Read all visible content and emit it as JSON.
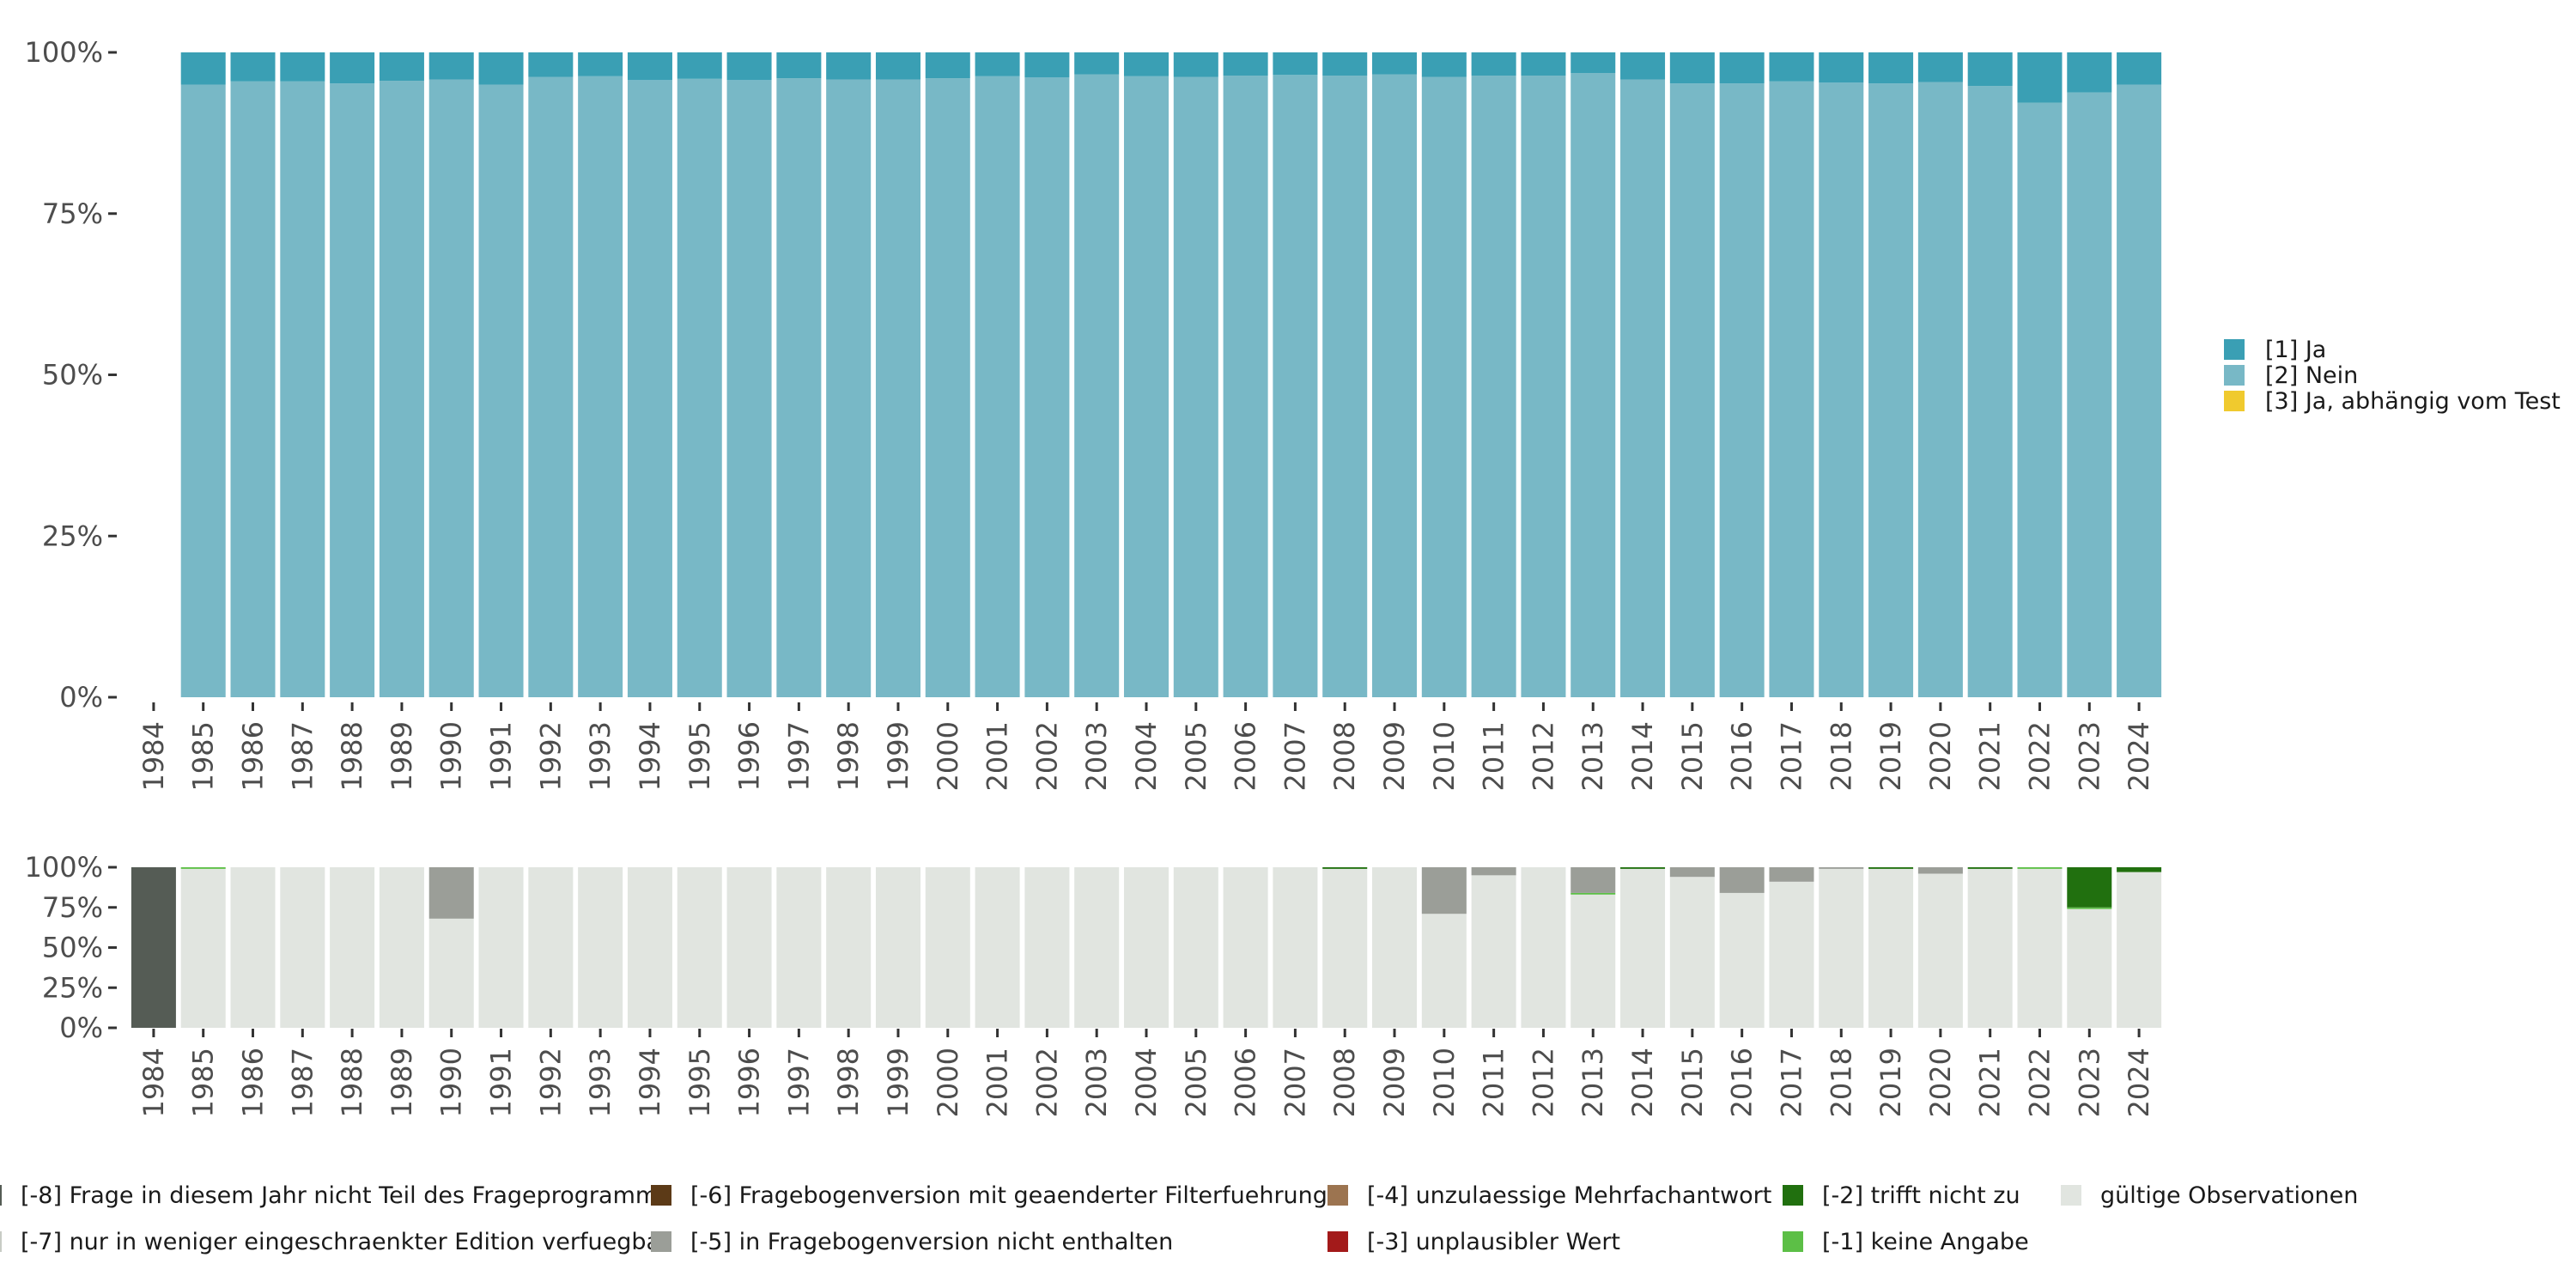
{
  "chart_data": [
    {
      "type": "bar",
      "stacked": true,
      "normalized": true,
      "categories": [
        "1984",
        "1985",
        "1986",
        "1987",
        "1988",
        "1989",
        "1990",
        "1991",
        "1992",
        "1993",
        "1994",
        "1995",
        "1996",
        "1997",
        "1998",
        "1999",
        "2000",
        "2001",
        "2002",
        "2003",
        "2004",
        "2005",
        "2006",
        "2007",
        "2008",
        "2009",
        "2010",
        "2011",
        "2012",
        "2013",
        "2014",
        "2015",
        "2016",
        "2017",
        "2018",
        "2019",
        "2020",
        "2021",
        "2022",
        "2023",
        "2024"
      ],
      "y_ticks": [
        "0%",
        "25%",
        "50%",
        "75%",
        "100%"
      ],
      "ylim": [
        0,
        100
      ],
      "legend_position": "right",
      "series": [
        {
          "name": "[2] Nein",
          "color": "#78b8c6",
          "values": [
            0,
            95,
            95.5,
            95.5,
            95.2,
            95.6,
            95.8,
            95,
            96.2,
            96.3,
            95.7,
            95.9,
            95.7,
            96,
            95.8,
            95.8,
            96,
            96.3,
            96.1,
            96.6,
            96.3,
            96.2,
            96.4,
            96.5,
            96.4,
            96.6,
            96.2,
            96.4,
            96.4,
            96.8,
            95.8,
            95.2,
            95.2,
            95.5,
            95.3,
            95.2,
            95.4,
            94.8,
            92.2,
            93.8,
            95
          ]
        },
        {
          "name": "[1] Ja",
          "color": "#3a9fb4",
          "values": [
            0,
            5,
            4.5,
            4.5,
            4.8,
            4.4,
            4.2,
            5,
            3.8,
            3.7,
            4.3,
            4.1,
            4.3,
            4,
            4.2,
            4.2,
            4,
            3.7,
            3.9,
            3.4,
            3.7,
            3.8,
            3.6,
            3.5,
            3.6,
            3.4,
            3.8,
            3.6,
            3.6,
            3.2,
            4.2,
            4.8,
            4.8,
            4.5,
            4.7,
            4.8,
            4.6,
            5.2,
            7.8,
            6.2,
            5
          ]
        },
        {
          "name": "[3] Ja, abhängig vom Test",
          "color": "#f0ca2e",
          "values": [
            0,
            0,
            0,
            0,
            0,
            0,
            0,
            0,
            0,
            0,
            0,
            0,
            0,
            0,
            0,
            0,
            0,
            0,
            0,
            0,
            0,
            0,
            0,
            0,
            0,
            0,
            0,
            0,
            0,
            0,
            0,
            0,
            0,
            0,
            0,
            0,
            0,
            0,
            0,
            0,
            0
          ]
        }
      ]
    },
    {
      "type": "bar",
      "stacked": true,
      "normalized": true,
      "categories": [
        "1984",
        "1985",
        "1986",
        "1987",
        "1988",
        "1989",
        "1990",
        "1991",
        "1992",
        "1993",
        "1994",
        "1995",
        "1996",
        "1997",
        "1998",
        "1999",
        "2000",
        "2001",
        "2002",
        "2003",
        "2004",
        "2005",
        "2006",
        "2007",
        "2008",
        "2009",
        "2010",
        "2011",
        "2012",
        "2013",
        "2014",
        "2015",
        "2016",
        "2017",
        "2018",
        "2019",
        "2020",
        "2021",
        "2022",
        "2023",
        "2024"
      ],
      "y_ticks": [
        "0%",
        "25%",
        "50%",
        "75%",
        "100%"
      ],
      "ylim": [
        0,
        100
      ],
      "legend_position": "bottom",
      "series": [
        {
          "name": "gültige Observationen",
          "color": "#e1e5e0",
          "values": [
            0,
            99,
            100,
            100,
            100,
            100,
            68,
            100,
            100,
            100,
            100,
            100,
            100,
            100,
            100,
            100,
            100,
            100,
            100,
            100,
            100,
            100,
            100,
            100,
            99,
            100,
            71,
            95,
            100,
            83,
            99,
            94,
            84,
            91,
            99,
            99,
            96,
            99,
            99,
            74,
            97
          ]
        },
        {
          "name": "[-1] keine Angabe",
          "color": "#5cbf46",
          "values": [
            0,
            1,
            0,
            0,
            0,
            0,
            0,
            0,
            0,
            0,
            0,
            0,
            0,
            0,
            0,
            0,
            0,
            0,
            0,
            0,
            0,
            0,
            0,
            0,
            0,
            0,
            0,
            0,
            0,
            1,
            0,
            0,
            0,
            0,
            0,
            0,
            0,
            0,
            1,
            1,
            0
          ]
        },
        {
          "name": "[-2] trifft nicht zu",
          "color": "#21700f",
          "values": [
            0,
            0,
            0,
            0,
            0,
            0,
            0,
            0,
            0,
            0,
            0,
            0,
            0,
            0,
            0,
            0,
            0,
            0,
            0,
            0,
            0,
            0,
            0,
            0,
            1,
            0,
            0,
            0,
            0,
            0,
            1,
            0,
            0,
            0,
            0,
            1,
            0,
            1,
            0,
            25,
            3
          ]
        },
        {
          "name": "[-3] unplausibler Wert",
          "color": "#a31a1a",
          "values": [
            0,
            0,
            0,
            0,
            0,
            0,
            0,
            0,
            0,
            0,
            0,
            0,
            0,
            0,
            0,
            0,
            0,
            0,
            0,
            0,
            0,
            0,
            0,
            0,
            0,
            0,
            0,
            0,
            0,
            0,
            0,
            0,
            0,
            0,
            0,
            0,
            0,
            0,
            0,
            0,
            0
          ]
        },
        {
          "name": "[-4] unzulaessige Mehrfachantwort",
          "color": "#9c7450",
          "values": [
            0,
            0,
            0,
            0,
            0,
            0,
            0,
            0,
            0,
            0,
            0,
            0,
            0,
            0,
            0,
            0,
            0,
            0,
            0,
            0,
            0,
            0,
            0,
            0,
            0,
            0,
            0,
            0,
            0,
            0,
            0,
            0,
            0,
            0,
            0,
            0,
            0,
            0,
            0,
            0,
            0
          ]
        },
        {
          "name": "[-5] in Fragebogenversion nicht enthalten",
          "color": "#9b9e98",
          "values": [
            0,
            0,
            0,
            0,
            0,
            0,
            32,
            0,
            0,
            0,
            0,
            0,
            0,
            0,
            0,
            0,
            0,
            0,
            0,
            0,
            0,
            0,
            0,
            0,
            0,
            0,
            29,
            5,
            0,
            16,
            0,
            6,
            16,
            9,
            1,
            0,
            4,
            0,
            0,
            0,
            0
          ]
        },
        {
          "name": "[-6] Fragebogenversion mit geaenderter Filterfuehrung",
          "color": "#5c3a17",
          "values": [
            0,
            0,
            0,
            0,
            0,
            0,
            0,
            0,
            0,
            0,
            0,
            0,
            0,
            0,
            0,
            0,
            0,
            0,
            0,
            0,
            0,
            0,
            0,
            0,
            0,
            0,
            0,
            0,
            0,
            0,
            0,
            0,
            0,
            0,
            0,
            0,
            0,
            0,
            0,
            0,
            0
          ]
        },
        {
          "name": "[-7] nur in weniger eingeschraenkter Edition verfuegbar",
          "color": "#c8ccc5",
          "values": [
            0,
            0,
            0,
            0,
            0,
            0,
            0,
            0,
            0,
            0,
            0,
            0,
            0,
            0,
            0,
            0,
            0,
            0,
            0,
            0,
            0,
            0,
            0,
            0,
            0,
            0,
            0,
            0,
            0,
            0,
            0,
            0,
            0,
            0,
            0,
            0,
            0,
            0,
            0,
            0,
            0
          ]
        },
        {
          "name": "[-8] Frage in diesem Jahr nicht Teil des Frageprogramms",
          "color": "#555c55",
          "values": [
            100,
            0,
            0,
            0,
            0,
            0,
            0,
            0,
            0,
            0,
            0,
            0,
            0,
            0,
            0,
            0,
            0,
            0,
            0,
            0,
            0,
            0,
            0,
            0,
            0,
            0,
            0,
            0,
            0,
            0,
            0,
            0,
            0,
            0,
            0,
            0,
            0,
            0,
            0,
            0,
            0
          ]
        }
      ]
    }
  ],
  "legend_top": [
    {
      "label": "[1] Ja",
      "color": "#3a9fb4"
    },
    {
      "label": "[2] Nein",
      "color": "#78b8c6"
    },
    {
      "label": "[3] Ja, abhängig vom Test",
      "color": "#f0ca2e"
    }
  ],
  "legend_bottom": [
    {
      "label": "[-8] Frage in diesem Jahr nicht Teil des Frageprogramms",
      "color": "#555c55"
    },
    {
      "label": "[-7] nur in weniger eingeschraenkter Edition verfuegbar",
      "color": "#c8ccc5"
    },
    {
      "label": "[-6] Fragebogenversion mit geaenderter Filterfuehrung",
      "color": "#5c3a17"
    },
    {
      "label": "[-5] in Fragebogenversion nicht enthalten",
      "color": "#9b9e98"
    },
    {
      "label": "[-4] unzulaessige Mehrfachantwort",
      "color": "#9c7450"
    },
    {
      "label": "[-3] unplausibler Wert",
      "color": "#a31a1a"
    },
    {
      "label": "[-2] trifft nicht zu",
      "color": "#21700f"
    },
    {
      "label": "[-1] keine Angabe",
      "color": "#5cbf46"
    },
    {
      "label": "gültige Observationen",
      "color": "#e1e5e0"
    }
  ]
}
